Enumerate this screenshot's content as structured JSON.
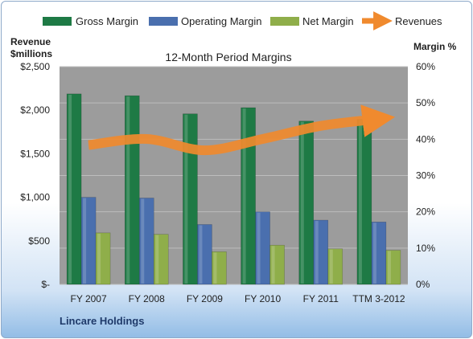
{
  "chart_data": {
    "type": "bar",
    "title": "12-Month Period Margins",
    "categories": [
      "FY 2007",
      "FY 2008",
      "FY 2009",
      "FY 2010",
      "FY 2011",
      "TTM 3-2012"
    ],
    "series": [
      {
        "name": "Gross Margin",
        "axis": "right",
        "kind": "bar",
        "color": "#1e7a45",
        "values": [
          52.5,
          52.0,
          47.0,
          48.7,
          45.0,
          45.5
        ]
      },
      {
        "name": "Operating Margin",
        "axis": "right",
        "kind": "bar",
        "color": "#4a6fae",
        "values": [
          24.0,
          23.8,
          16.5,
          20.0,
          17.7,
          17.2
        ]
      },
      {
        "name": "Net Margin",
        "axis": "right",
        "kind": "bar",
        "color": "#8fae4a",
        "values": [
          14.2,
          13.8,
          9.0,
          10.8,
          9.8,
          9.4
        ]
      },
      {
        "name": "Revenues",
        "axis": "left",
        "kind": "line",
        "color": "#f08a2e",
        "values": [
          1600,
          1670,
          1540,
          1670,
          1820,
          1900
        ]
      }
    ],
    "left_axis": {
      "title_line1": "Revenue",
      "title_line2": "$millions",
      "ticks": [
        "$-",
        "$500",
        "$1,000",
        "$1,500",
        "$2,000",
        "$2,500"
      ],
      "ylim": [
        0,
        2500
      ]
    },
    "right_axis": {
      "title": "Margin %",
      "ticks": [
        "0%",
        "10%",
        "20%",
        "30%",
        "40%",
        "50%",
        "60%"
      ],
      "ylim": [
        0,
        60
      ]
    },
    "legend_position": "top",
    "grid": true,
    "plot_background": "#9c9c9c"
  },
  "footer": {
    "company": "Lincare Holdings"
  }
}
